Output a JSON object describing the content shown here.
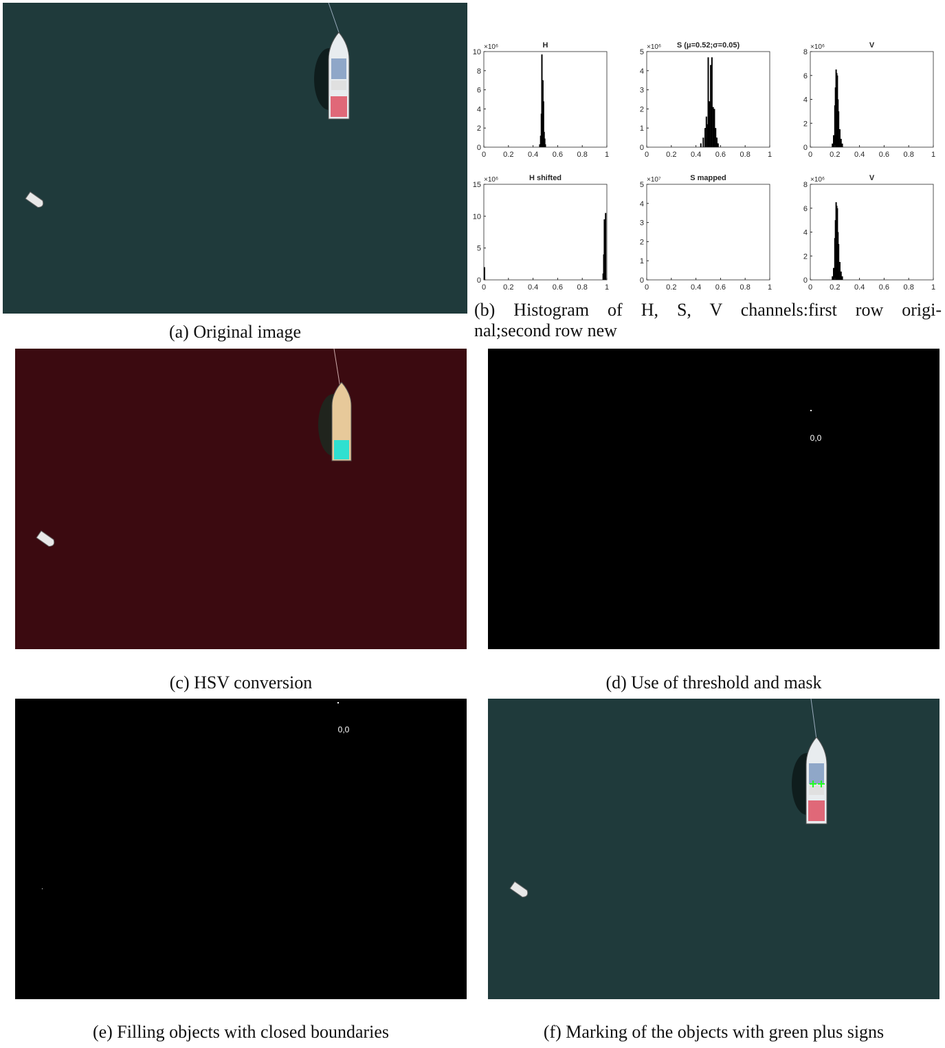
{
  "panels": [
    {
      "caption": "(a) Original image"
    },
    {
      "caption_lines": [
        "(b) Histogram of H, S, V channels:first row origi-",
        "nal;second row new"
      ]
    },
    {
      "caption": "(c) HSV conversion"
    },
    {
      "caption": "(d) Use of threshold and mask"
    },
    {
      "caption": "(e) Filling objects with closed boundaries"
    },
    {
      "caption": "(f) Marking of the objects with green plus signs"
    }
  ],
  "chart_data": [
    {
      "type": "histogram",
      "title": "H",
      "exponent_label": "×10⁶",
      "color": "#000000",
      "x": [
        0.455,
        0.462,
        0.468,
        0.472,
        0.476,
        0.48,
        0.485,
        0.49,
        0.495,
        0.5
      ],
      "values": [
        0.3,
        1.2,
        3.5,
        9.7,
        5.0,
        7.0,
        4.8,
        1.6,
        0.9,
        0.3
      ],
      "xlim": [
        0,
        1
      ],
      "xticks": [
        0,
        0.2,
        0.4,
        0.6,
        0.8,
        1
      ],
      "ylim": [
        0,
        10
      ],
      "yticks": [
        0,
        2,
        4,
        6,
        8,
        10
      ]
    },
    {
      "type": "histogram",
      "title": "S (μ=0.52;σ=0.05)",
      "exponent_label": "×10⁶",
      "color": "#000000",
      "x": [
        0.44,
        0.46,
        0.475,
        0.485,
        0.495,
        0.5,
        0.51,
        0.52,
        0.53,
        0.54,
        0.55,
        0.56,
        0.57,
        0.58
      ],
      "values": [
        0.2,
        0.5,
        1.0,
        1.6,
        1.2,
        4.7,
        2.4,
        4.3,
        4.7,
        2.1,
        2.0,
        1.0,
        0.5,
        0.2
      ],
      "xlim": [
        0,
        1
      ],
      "xticks": [
        0,
        0.2,
        0.4,
        0.6,
        0.8,
        1
      ],
      "ylim": [
        0,
        5
      ],
      "yticks": [
        0,
        1,
        2,
        3,
        4,
        5
      ]
    },
    {
      "type": "histogram",
      "title": "V",
      "exponent_label": "×10⁶",
      "color": "#000000",
      "x": [
        0.18,
        0.19,
        0.2,
        0.205,
        0.21,
        0.215,
        0.22,
        0.225,
        0.23,
        0.24,
        0.25,
        0.26
      ],
      "values": [
        0.3,
        1.0,
        3.5,
        5.0,
        6.5,
        6.2,
        6.0,
        4.0,
        3.0,
        1.5,
        0.7,
        0.3
      ],
      "xlim": [
        0,
        1
      ],
      "xticks": [
        0,
        0.2,
        0.4,
        0.6,
        0.8,
        1
      ],
      "ylim": [
        0,
        8
      ],
      "yticks": [
        0,
        2,
        4,
        6,
        8
      ]
    },
    {
      "type": "histogram",
      "title": "H shifted",
      "exponent_label": "×10⁶",
      "color": "#000000",
      "x": [
        0.005,
        0.97,
        0.975,
        0.98,
        0.985,
        0.99
      ],
      "values": [
        2.0,
        1.0,
        4.0,
        9.5,
        9.0,
        10.5
      ],
      "xlim": [
        0,
        1
      ],
      "xticks": [
        0,
        0.2,
        0.4,
        0.6,
        0.8,
        1
      ],
      "ylim": [
        0,
        15
      ],
      "yticks": [
        0,
        5,
        10,
        15
      ]
    },
    {
      "type": "histogram",
      "title": "S mapped",
      "exponent_label": "×10⁷",
      "color": "#000000",
      "x": [],
      "values": [],
      "xlim": [
        0,
        1
      ],
      "xticks": [
        0,
        0.2,
        0.4,
        0.6,
        0.8,
        1
      ],
      "ylim": [
        0,
        5
      ],
      "yticks": [
        0,
        1,
        2,
        3,
        4,
        5
      ]
    },
    {
      "type": "histogram",
      "title": "V",
      "exponent_label": "×10⁶",
      "color": "#000000",
      "x": [
        0.18,
        0.19,
        0.2,
        0.205,
        0.21,
        0.215,
        0.22,
        0.225,
        0.23,
        0.24,
        0.25,
        0.26
      ],
      "values": [
        0.3,
        1.0,
        3.5,
        5.0,
        6.5,
        6.2,
        6.0,
        4.0,
        3.0,
        1.5,
        0.7,
        0.3
      ],
      "xlim": [
        0,
        1
      ],
      "xticks": [
        0,
        0.2,
        0.4,
        0.6,
        0.8,
        1
      ],
      "ylim": [
        0,
        8
      ],
      "yticks": [
        0,
        2,
        4,
        6,
        8
      ]
    }
  ]
}
